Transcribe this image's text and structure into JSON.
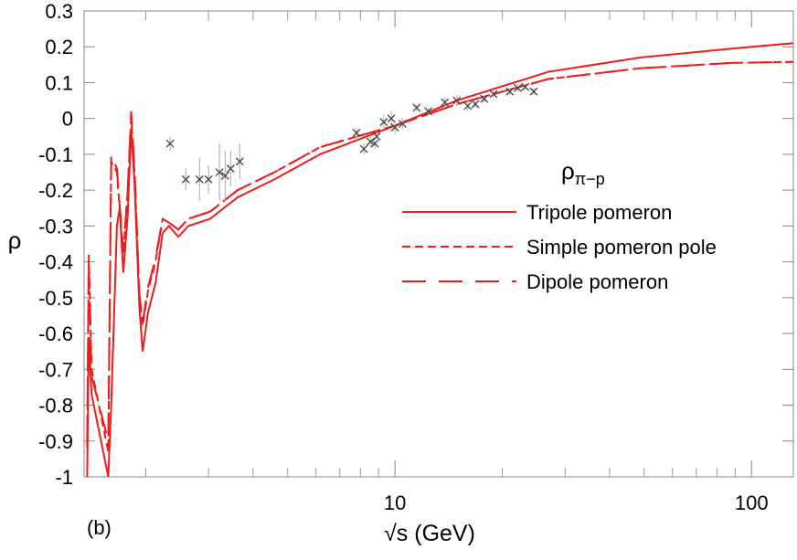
{
  "chart_data": {
    "type": "line",
    "x_label": "√s (GeV)",
    "y_label": "ρ",
    "annotation": "(b)",
    "legend_title": "ρ",
    "legend_title_sub": "π−p",
    "legend": "right",
    "xscale": "log",
    "xlim": [
      1.343,
      131
    ],
    "xticks": [
      10,
      100
    ],
    "minor_ticks": true,
    "ylim": [
      -1,
      0.3
    ],
    "yticks": [
      0.3,
      0.2,
      0.1,
      0,
      -0.1,
      -0.2,
      -0.3,
      -0.4,
      -0.5,
      -0.6,
      -0.7,
      -0.8,
      -0.9,
      -1
    ],
    "x": [
      1.37,
      1.384,
      1.41,
      1.57,
      1.6,
      1.66,
      1.69,
      1.73,
      1.78,
      1.82,
      1.86,
      1.92,
      1.96,
      2.03,
      2.13,
      2.23,
      2.32,
      2.47,
      2.63,
      3.03,
      3.62,
      4.59,
      6.16,
      10,
      14.9,
      26.9,
      48.7,
      87.8,
      131
    ],
    "series": [
      {
        "name": "Tripole pomeron",
        "color": "#ee1c1c",
        "dash": "solid",
        "values": [
          -1,
          -0.61,
          -0.77,
          -1,
          -0.8,
          -0.3,
          -0.25,
          -0.43,
          -0.27,
          -0.03,
          -0.18,
          -0.53,
          -0.65,
          -0.54,
          -0.46,
          -0.32,
          -0.3,
          -0.33,
          -0.3,
          -0.28,
          -0.22,
          -0.17,
          -0.1,
          -0.02,
          0.05,
          0.13,
          0.17,
          0.195,
          0.21
        ]
      },
      {
        "name": "Simple pomeron pole",
        "color": "#ee1c1c",
        "dash": "dashed",
        "values": [
          -0.92,
          -0.38,
          -0.7,
          -0.93,
          -0.12,
          -0.15,
          -0.25,
          -0.38,
          -0.2,
          0.0,
          -0.15,
          -0.5,
          -0.58,
          -0.48,
          -0.4,
          -0.28,
          -0.29,
          -0.31,
          -0.28,
          -0.26,
          -0.2,
          -0.15,
          -0.08,
          -0.02,
          0.04,
          0.11,
          0.14,
          0.155,
          0.158
        ]
      },
      {
        "name": "Dipole pomeron",
        "color": "#ee1c1c",
        "dash": "longdash",
        "values": [
          -0.9,
          -0.4,
          -0.72,
          -0.9,
          -0.1,
          -0.14,
          -0.24,
          -0.37,
          -0.2,
          0.02,
          -0.14,
          -0.49,
          -0.57,
          -0.47,
          -0.39,
          -0.28,
          -0.29,
          -0.31,
          -0.28,
          -0.26,
          -0.2,
          -0.15,
          -0.08,
          -0.02,
          0.04,
          0.11,
          0.14,
          0.155,
          0.158
        ]
      }
    ],
    "points": {
      "color": "#444444",
      "x": [
        2.34,
        2.59,
        2.83,
        3.0,
        3.22,
        3.34,
        3.46,
        3.67,
        7.8,
        8.18,
        8.53,
        8.78,
        8.89,
        9.3,
        9.76,
        10,
        10.5,
        11.5,
        12.4,
        13.8,
        14.9,
        16.0,
        16.8,
        17.8,
        18.9,
        21,
        22.1,
        23.2,
        24.5
      ],
      "y": [
        -0.07,
        -0.17,
        -0.17,
        -0.17,
        -0.15,
        -0.16,
        -0.14,
        -0.12,
        -0.04,
        -0.085,
        -0.065,
        -0.07,
        -0.05,
        -0.01,
        0.0,
        -0.025,
        -0.015,
        0.03,
        0.02,
        0.045,
        0.05,
        0.035,
        0.04,
        0.055,
        0.068,
        0.075,
        0.085,
        0.088,
        0.075
      ],
      "errors": [
        0.02,
        0.03,
        0.06,
        0.04,
        0.08,
        0.07,
        0.05,
        0.05,
        0.015,
        0.015,
        0.015,
        0.015,
        0.015,
        0.02,
        0.02,
        0.02,
        0.015,
        0.01,
        0.01,
        0.015,
        0.015,
        0.015,
        0.01,
        0.01,
        0.01,
        0.01,
        0.01,
        0.01,
        0.01
      ]
    }
  }
}
